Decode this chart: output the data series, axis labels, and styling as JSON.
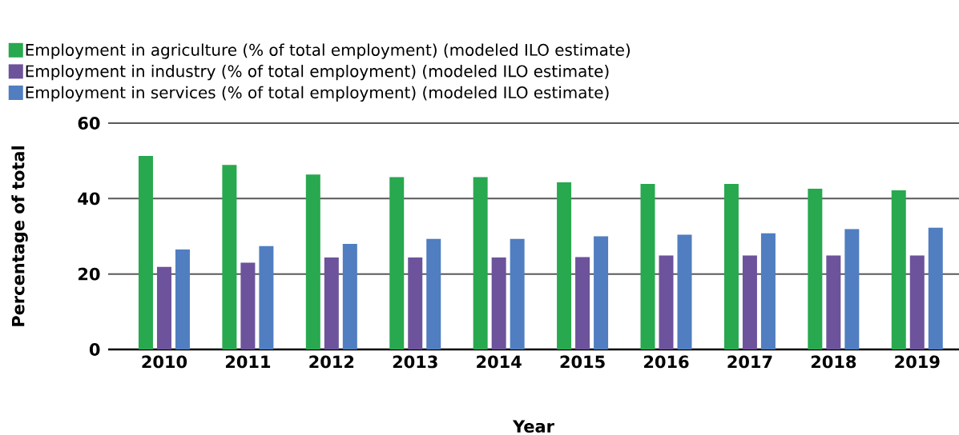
{
  "chart_data": {
    "type": "bar",
    "xlabel": "Year",
    "ylabel": "Percentage of total",
    "categories": [
      "2010",
      "2011",
      "2012",
      "2013",
      "2014",
      "2015",
      "2016",
      "2017",
      "2018",
      "2019"
    ],
    "series": [
      {
        "name": "Employment in agriculture (% of total employment) (modeled ILO estimate)",
        "color": "#28a84f",
        "values": [
          51.3,
          48.9,
          46.4,
          45.7,
          45.7,
          44.3,
          43.9,
          43.9,
          42.6,
          42.2
        ]
      },
      {
        "name": "Employment in industry (% of total employment) (modeled ILO estimate)",
        "color": "#6c539b",
        "values": [
          21.9,
          23.0,
          24.4,
          24.4,
          24.4,
          24.5,
          24.9,
          24.9,
          24.9,
          24.9
        ]
      },
      {
        "name": "Employment in services (% of total employment) (modeled ILO estimate)",
        "color": "#507ec0",
        "values": [
          26.5,
          27.4,
          28.0,
          29.3,
          29.3,
          30.0,
          30.4,
          30.8,
          31.9,
          32.3
        ]
      }
    ],
    "ylim": [
      0,
      60
    ],
    "yticks": [
      0,
      20,
      40,
      60
    ],
    "grid": "y",
    "legend": "top left"
  }
}
